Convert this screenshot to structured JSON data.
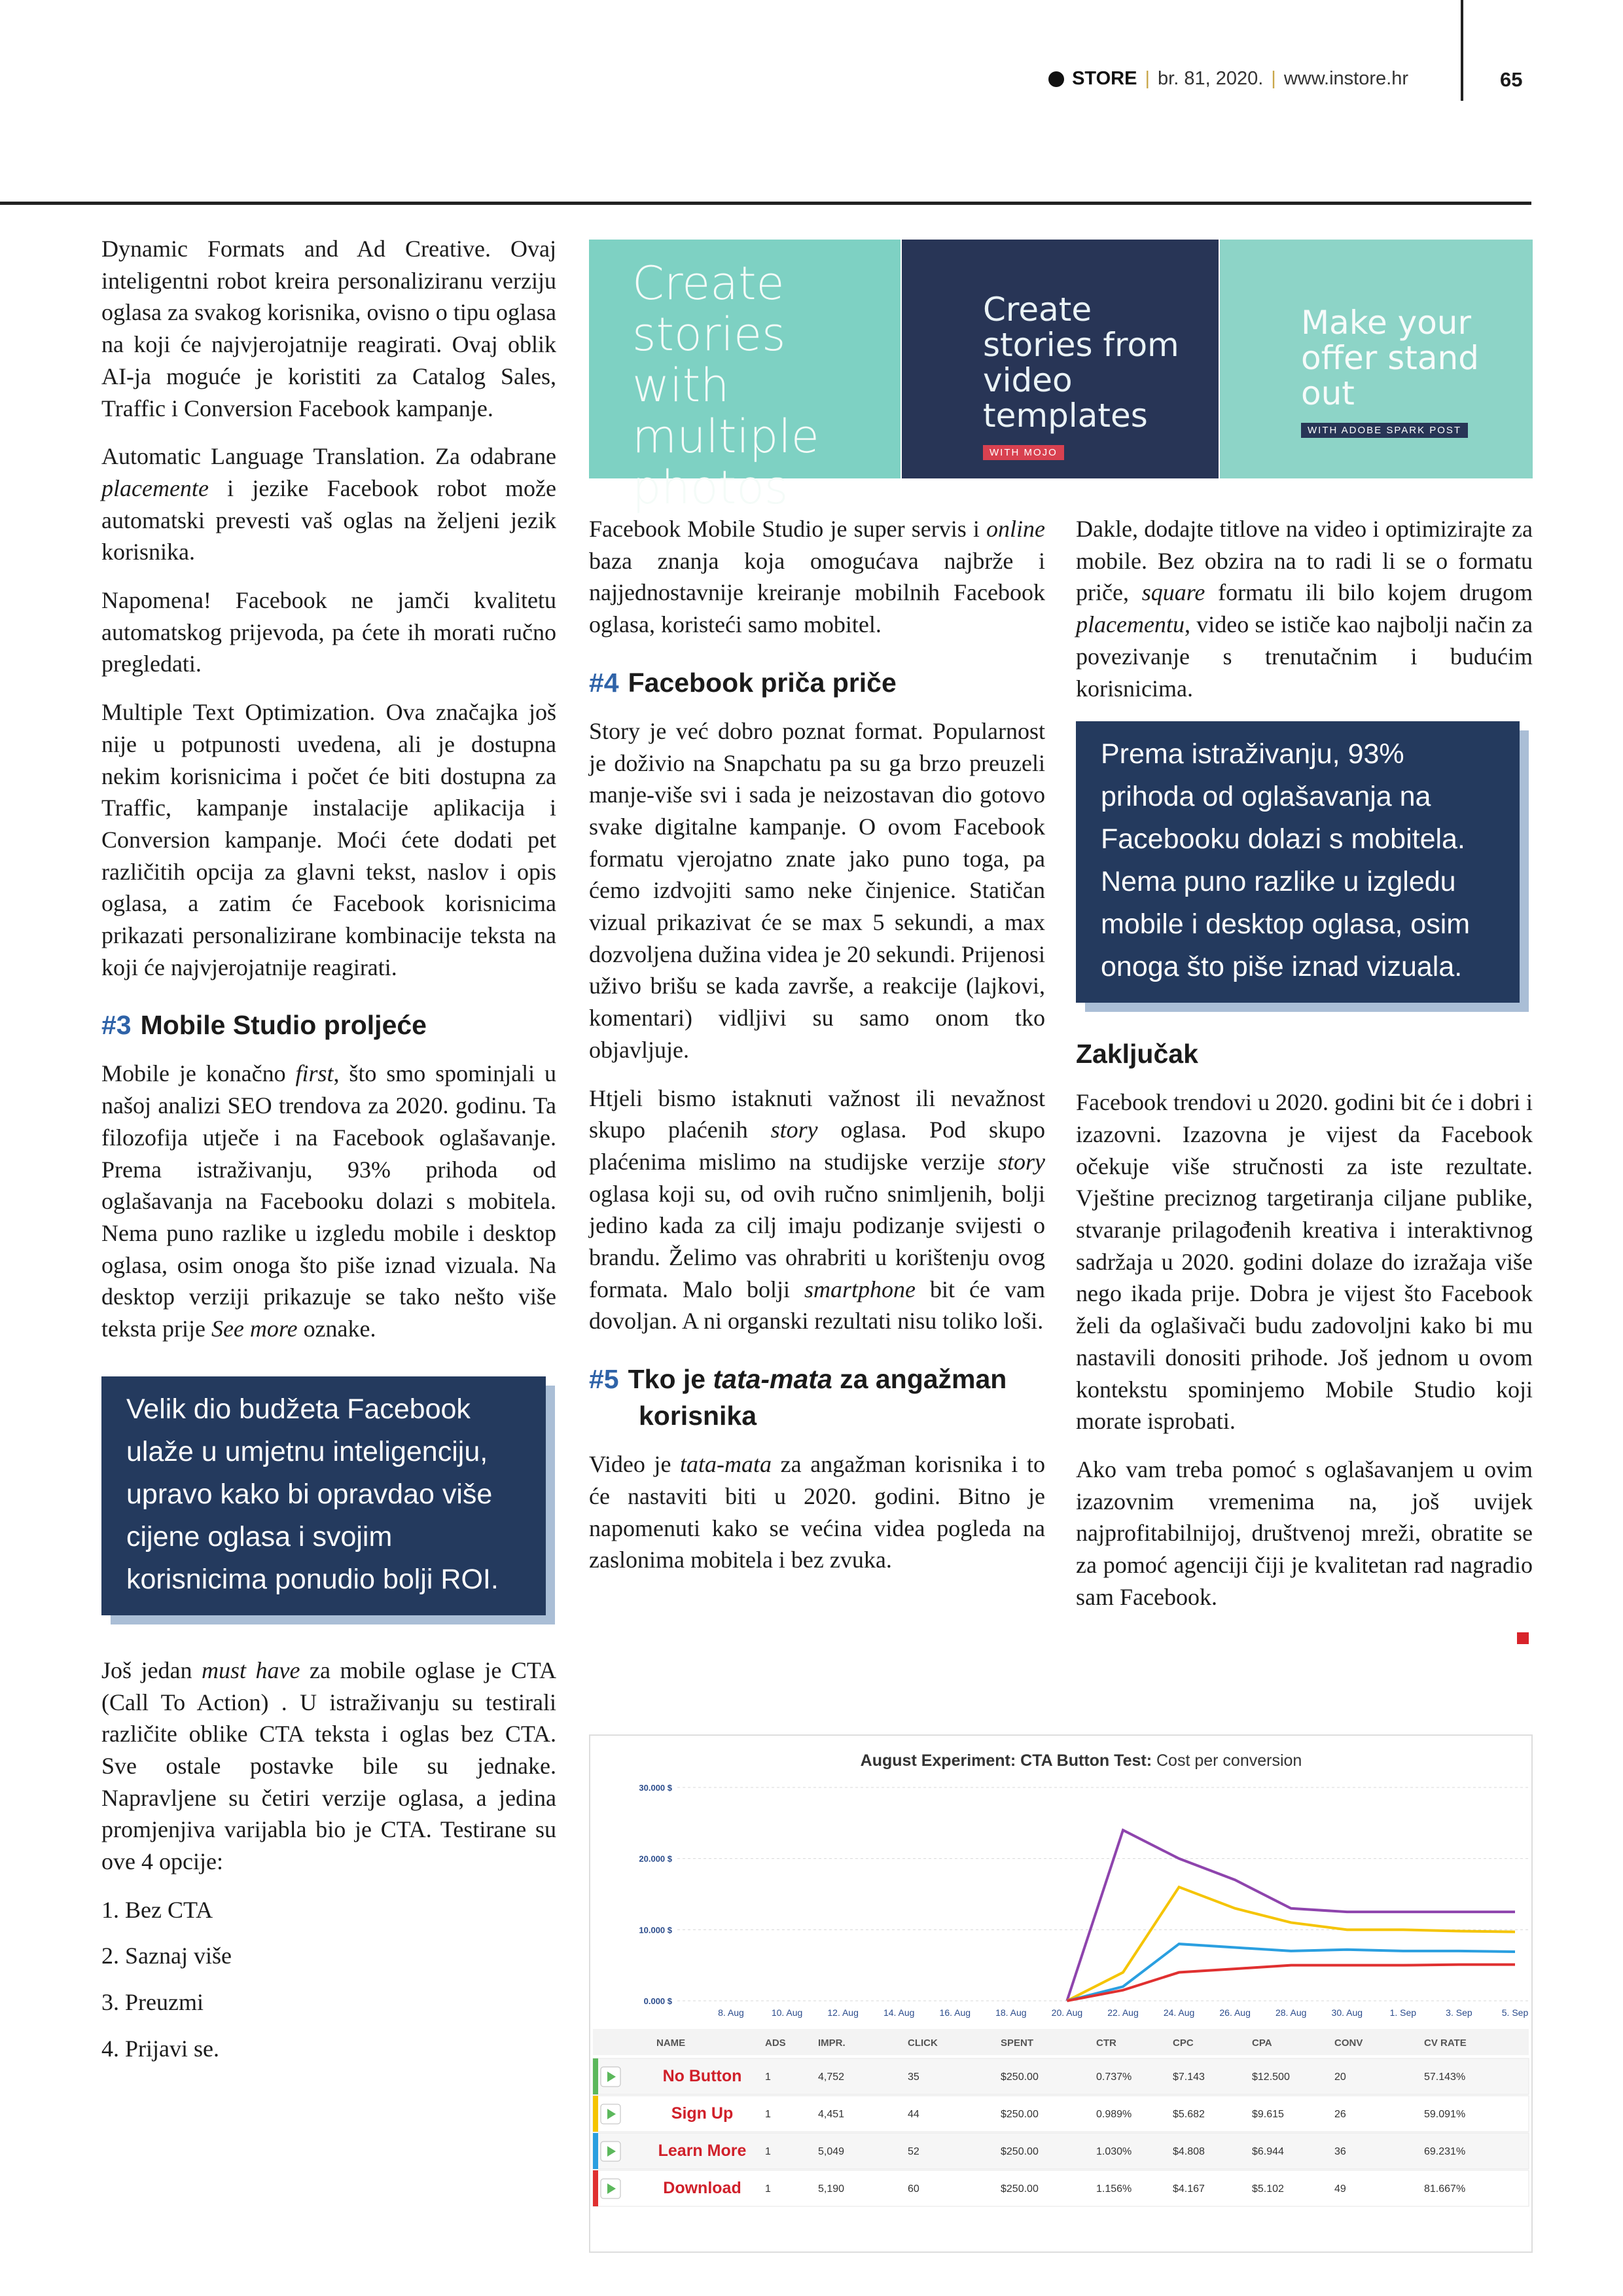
{
  "header": {
    "brand": "STORE",
    "issue": "br. 81, 2020.",
    "site": "www.instore.hr",
    "page": "65"
  },
  "banner": {
    "panel1": "Create stories with multiple photos",
    "panel2": "Create stories from video templates",
    "panel2_badge": "WITH MOJO",
    "panel3": "Make your offer stand out",
    "panel3_badge": "WITH ADOBE SPARK POST"
  },
  "columns": [
    [
      {
        "p": "Dynamic Formats and Ad Creative. Ovaj inteligentni robot kreira personaliziranu verziju oglasa za svakog korisnika, ovisno o tipu oglasa na koji će najvjerojatnije reagirati. Ovaj oblik AI-ja moguće je koristiti za Catalog Sales, Traffic i Conversion Facebook kampanje."
      },
      {
        "p": [
          "Automatic Language Translation. Za odabrane ",
          "placemente",
          " i jezike Facebook robot može automatski prevesti vaš oglas na željeni jezik korisnika."
        ]
      },
      {
        "p": "Napomena! Facebook ne jamči kvalitetu automatskog prijevoda, pa ćete ih morati ručno pregledati."
      },
      {
        "p": "Multiple Text Optimization. Ova značajka još nije u potpunosti uvedena, ali je dostupna nekim korisnicima i počet će biti dostupna za Traffic, kampanje instalacije aplikacija i Conversion kampanje. Moći ćete dodati pet različitih opcija za glavni tekst, naslov i opis oglasa, a zatim će Facebook korisnicima prikazati personalizirane kombinacije teksta na koji će najvjerojatnije reagirati."
      },
      {
        "heading": {
          "num": "#3",
          "text": "Mobile Studio proljeće"
        }
      },
      {
        "p": [
          "Mobile je konačno ",
          "first",
          ", što smo spominjali u našoj analizi SEO trendova za 2020. godinu. Ta filozofija utječe i na Facebook oglašavanje. Prema istraživanju, 93% prihoda od oglašavanja na Facebooku dolazi s mobitela. Nema puno razlike u izgledu mobile i desktop oglasa, osim onoga što piše iznad vizuala. Na desktop verziji prikazuje se tako nešto više teksta prije ",
          "See more",
          " oznake."
        ]
      },
      {
        "quote": "Velik dio budžeta Facebook ulaže u umjetnu inteligenciju, upravo kako bi opravdao više cijene oglasa i svojim korisnicima ponudio bolji ROI."
      },
      {
        "p": [
          "Još jedan ",
          "must have",
          " za mobile oglase je CTA (Call To Action) . U istraživanju su testirali različite oblike CTA teksta i oglas bez CTA. Sve ostale postavke bile su jednake. Napravljene su četiri verzije oglasa, a jedina promjenjiva varijabla bio je CTA. Testirane su ove 4 opcije:"
        ]
      },
      {
        "list": [
          "1. Bez CTA",
          "2. Saznaj više",
          "3. Preuzmi",
          "4. Prijavi se."
        ]
      }
    ],
    [
      {
        "p": [
          "Facebook Mobile Studio je super servis i ",
          "online",
          " baza znanja koja omogućava najbrže i najjednostavnije kreiranje mobilnih Facebook oglasa, koristeći samo mobitel."
        ]
      },
      {
        "heading": {
          "num": "#4",
          "text": "Facebook priča priče"
        }
      },
      {
        "p": "Story je već dobro poznat format. Popularnost je doživio na Snapchatu pa su ga brzo preuzeli manje-više svi i sada je neizostavan dio gotovo svake digitalne kampanje. O ovom Facebook formatu vjerojatno znate jako puno toga, pa ćemo izdvojiti samo neke činjenice. Statičan vizual prikazivat će se max 5 sekundi, a max dozvoljena dužina videa je 20 sekundi. Prijenosi uživo brišu se kada završe, a reakcije (lajkovi, komentari) vidljivi su samo onom tko objavljuje."
      },
      {
        "p": [
          "Htjeli bismo istaknuti važnost ili nevažnost skupo plaćenih ",
          "story",
          " oglasa. Pod skupo plaćenima mislimo na studijske verzije ",
          "story",
          " oglasa koji su, od ovih ručno snimljenih, bolji jedino kada za cilj imaju podizanje svijesti o brandu. Želimo vas ohrabriti u korištenju ovog formata. Malo bolji ",
          "smartphone",
          " bit će vam dovoljan. A ni organski rezultati nisu toliko loši."
        ]
      },
      {
        "heading": {
          "num": "#5",
          "text": [
            "Tko je ",
            "tata-mata",
            " za angažman korisnika"
          ]
        }
      },
      {
        "p": [
          "Video je ",
          "tata-mata",
          " za angažman korisnika i to će nastaviti biti u 2020. godini. Bitno je napomenuti kako se većina videa pogleda na zaslonima mobitela i bez zvuka."
        ]
      }
    ],
    [
      {
        "p": [
          "Dakle, dodajte titlove na video i optimizirajte za mobile. Bez obzira na to radi li se o formatu priče, ",
          "square",
          " formatu ili bilo kojem drugom ",
          "placementu",
          ", video se ističe kao najbolji način za povezivanje s trenutačnim i budućim korisnicima."
        ]
      },
      {
        "quote": "Prema istraživanju, 93% prihoda od oglašavanja na Facebooku dolazi s mobitela. Nema puno razlike u izgledu mobile i desktop oglasa, osim onoga što piše iznad vizuala."
      },
      {
        "heading": {
          "text": "Zaključak"
        }
      },
      {
        "p": "Facebook trendovi u 2020. godini bit će i dobri i izazovni. Izazovna je vijest da Facebook očekuje više stručnosti za iste rezultate. Vještine preciznog targetiranja ciljane publike, stvaranje prilagođenih kreativa i interaktivnog sadržaja u 2020. godini dolaze do izražaja više nego ikada prije. Dobra je vijest što Facebook želi da oglašivači budu zadovoljni kako bi mu nastavili donositi prihode. Još jednom u ovom kontekstu spominjemo Mobile Studio koji morate isprobati."
      },
      {
        "p": "Ako vam treba pomoć s oglašavanjem u ovim izazovnim vremenima na, još uvijek najprofitabilnijoj, društvenoj mreži, obratite se za pomoć agenciji čiji je kvalitetan rad nagradio sam Facebook."
      }
    ]
  ],
  "figure": {
    "chart_data": {
      "type": "line",
      "title": "August Experiment: CTA Button Test:",
      "subtitle": "Cost per conversion",
      "categories": [
        "8. Aug",
        "10. Aug",
        "12. Aug",
        "14. Aug",
        "16. Aug",
        "18. Aug",
        "20. Aug",
        "22. Aug",
        "24. Aug",
        "26. Aug",
        "28. Aug",
        "30. Aug",
        "1. Sep",
        "3. Sep",
        "5. Sep"
      ],
      "series": [
        {
          "color": "#8e44ad",
          "values": [
            null,
            null,
            null,
            null,
            null,
            null,
            0,
            24000,
            20000,
            17000,
            13000,
            12500,
            12500,
            12500,
            12500
          ]
        },
        {
          "color": "#f5c400",
          "values": [
            null,
            null,
            null,
            null,
            null,
            null,
            0,
            4000,
            16000,
            13000,
            11000,
            10000,
            10000,
            9800,
            9700
          ]
        },
        {
          "color": "#2a9fe0",
          "values": [
            null,
            null,
            null,
            null,
            null,
            null,
            0,
            2000,
            8000,
            7500,
            7000,
            7200,
            7000,
            7000,
            6900
          ]
        },
        {
          "color": "#e03030",
          "values": [
            null,
            null,
            null,
            null,
            null,
            null,
            0,
            1500,
            4000,
            4500,
            5000,
            5000,
            5000,
            5100,
            5100
          ]
        }
      ],
      "ylim": [
        0,
        30000
      ],
      "yticks": [
        {
          "value": 0,
          "label": "0.000 $"
        },
        {
          "value": 10000,
          "label": "10.000 $"
        },
        {
          "value": 20000,
          "label": "20.000 $"
        },
        {
          "value": 30000,
          "label": "30.000 $"
        }
      ],
      "grid": true
    },
    "table": {
      "header": [
        "NAME",
        "ADS",
        "IMPR.",
        "CLICK",
        "SPENT",
        "CTR",
        "CPC",
        "CPA",
        "CONV",
        "CV RATE"
      ],
      "rows": [
        [
          "No Button",
          "1",
          "4,752",
          "35",
          "$250.00",
          "0.737%",
          "$7.143",
          "$12.500",
          "20",
          "57.143%"
        ],
        [
          "Sign Up",
          "1",
          "4,451",
          "44",
          "$250.00",
          "0.989%",
          "$5.682",
          "$9.615",
          "26",
          "59.091%"
        ],
        [
          "Learn More",
          "1",
          "5,049",
          "52",
          "$250.00",
          "1.030%",
          "$4.808",
          "$6.944",
          "36",
          "69.231%"
        ],
        [
          "Download",
          "1",
          "5,190",
          "60",
          "$250.00",
          "1.156%",
          "$4.167",
          "$5.102",
          "49",
          "81.667%"
        ]
      ],
      "row_colors": [
        "#5cb85c",
        "#f5c400",
        "#2a9fe0",
        "#e03030"
      ]
    }
  }
}
